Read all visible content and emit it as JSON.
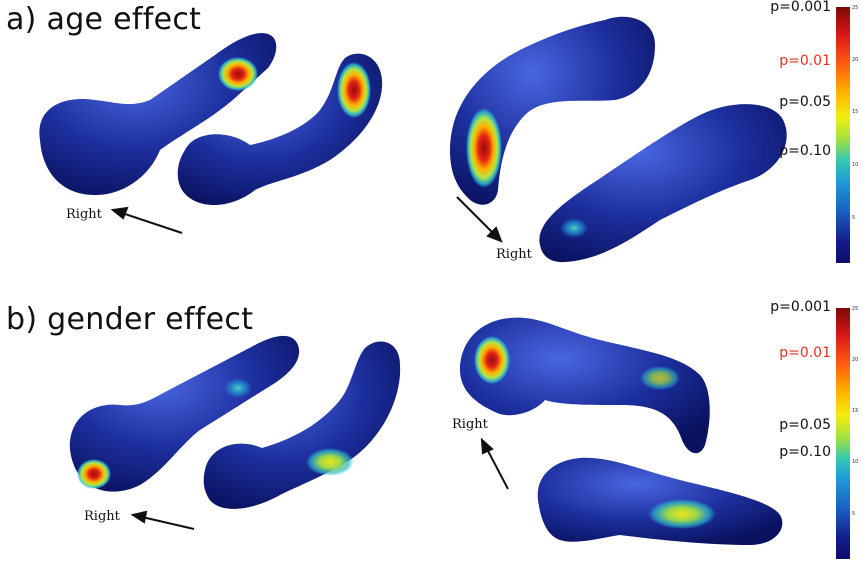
{
  "panel_a": {
    "title": "a) age effect",
    "left_direction_label": "Right",
    "right_direction_label": "Right",
    "colorbar": {
      "p_labels": [
        "p=0.001",
        "p=0.01",
        "p=0.05",
        "p=0.10"
      ],
      "ticks": [
        "25",
        "20",
        "15",
        "10",
        "5"
      ]
    }
  },
  "panel_b": {
    "title": "b) gender effect",
    "left_direction_label": "Right",
    "right_direction_label": "Right",
    "colorbar": {
      "p_labels": [
        "p=0.001",
        "p=0.01",
        "p=0.05",
        "p=0.10"
      ],
      "ticks": [
        "25",
        "20",
        "15",
        "10",
        "5"
      ]
    }
  },
  "colors": {
    "surface": "#1b2f9c",
    "highlight_red": "#b81a14",
    "highlight_yellow": "#f0e020",
    "highlight_cyan": "#35c9c0",
    "significant_p_label": "#e8321f"
  }
}
